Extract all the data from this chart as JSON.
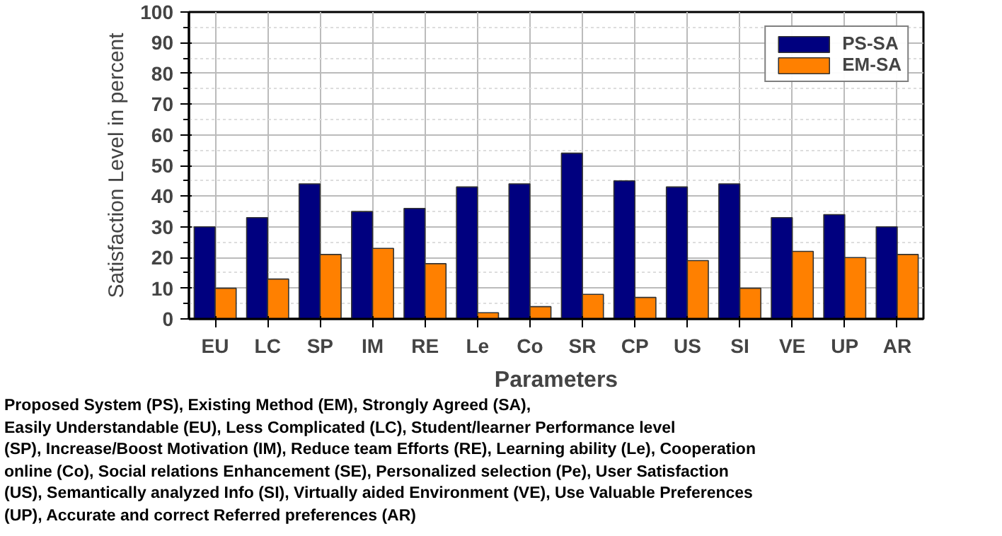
{
  "chart_data": {
    "type": "bar",
    "categories": [
      "EU",
      "LC",
      "SP",
      "IM",
      "RE",
      "Le",
      "Co",
      "SR",
      "CP",
      "US",
      "SI",
      "VE",
      "UP",
      "AR"
    ],
    "series": [
      {
        "name": "PS-SA",
        "color": "#00007f",
        "values": [
          30,
          33,
          44,
          35,
          36,
          43,
          44,
          54,
          45,
          43,
          44,
          33,
          34,
          30
        ]
      },
      {
        "name": "EM-SA",
        "color": "#ff8000",
        "values": [
          10,
          13,
          21,
          23,
          18,
          2,
          4,
          8,
          7,
          19,
          10,
          22,
          20,
          21
        ]
      }
    ],
    "xlabel": "Parameters",
    "ylabel": "Satisfaction Level in percent",
    "ylim": [
      0,
      100
    ],
    "yticks": [
      0,
      10,
      20,
      30,
      40,
      50,
      60,
      70,
      80,
      90,
      100
    ],
    "grid": true,
    "legend": "top right",
    "annotations": [
      "Proposed System (PS), Existing Method (EM), Strongly Agreed (SA),",
      "Easily Understandable (EU), Less Complicated (LC), Student/learner Performance level",
      "(SP), Increase/Boost Motivation (IM), Reduce team Efforts (RE), Learning ability (Le), Cooperation",
      "online (Co), Social relations Enhancement (SE), Personalized selection (Pe), User Satisfaction",
      "(US), Semantically analyzed Info (SI), Virtually aided Environment (VE), Use Valuable Preferences",
      "(UP), Accurate and correct Referred preferences (AR)"
    ]
  }
}
